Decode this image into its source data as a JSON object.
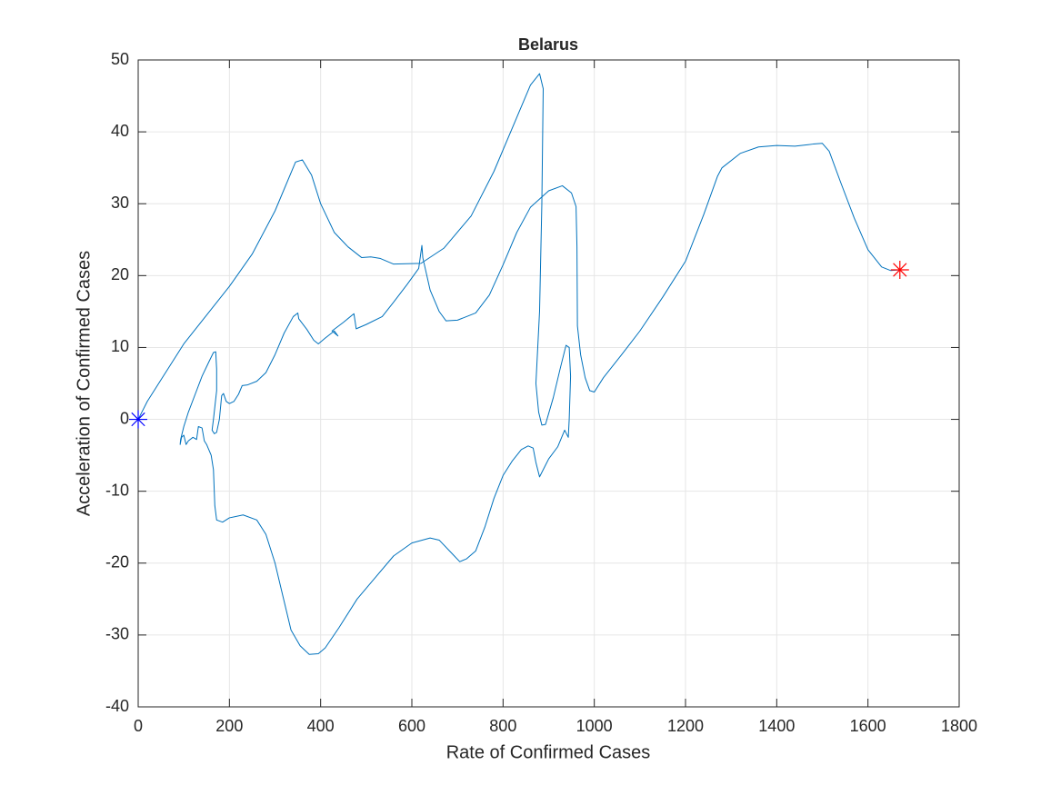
{
  "chart_data": {
    "type": "line",
    "title": "Belarus",
    "xlabel": "Rate of Confirmed Cases",
    "ylabel": "Acceleration of Confirmed Cases",
    "xlim": [
      0,
      1800
    ],
    "xticks": [
      0,
      200,
      400,
      600,
      800,
      1000,
      1200,
      1400,
      1600,
      1800
    ],
    "ylim": [
      -40,
      50
    ],
    "yticks": [
      -40,
      -30,
      -20,
      -10,
      0,
      10,
      20,
      30,
      40,
      50
    ],
    "grid": true,
    "series": [
      {
        "color": "#0072bd",
        "x": [
          0,
          20,
          50,
          75,
          100,
          150,
          200,
          250,
          300,
          345,
          360,
          380,
          400,
          430,
          460,
          490,
          510,
          530,
          560,
          620,
          670,
          730,
          780,
          830,
          860,
          880,
          888,
          885,
          880,
          872,
          878,
          885,
          893,
          910,
          925,
          938,
          945,
          948,
          945,
          943,
          935,
          920,
          900,
          880,
          872,
          866,
          855,
          840,
          820,
          800,
          780,
          760,
          740,
          720,
          705,
          690,
          660,
          640,
          600,
          560,
          520,
          480,
          440,
          410,
          395,
          375,
          355,
          335,
          315,
          300,
          280,
          260,
          230,
          200,
          185,
          172,
          168,
          165,
          160,
          150,
          145,
          140,
          132,
          128,
          120,
          110,
          105,
          100,
          95,
          92,
          93,
          100,
          110,
          125,
          140,
          155,
          165,
          170,
          172,
          172,
          165,
          162,
          167,
          172,
          178,
          183,
          187,
          193,
          200,
          210,
          220,
          228,
          240,
          260,
          280,
          300,
          320,
          340,
          350,
          352,
          370,
          385,
          395,
          410,
          430,
          438,
          425,
          450,
          473,
          478,
          500,
          535,
          560,
          590,
          615,
          622,
          624,
          640,
          660,
          675,
          700,
          740,
          770,
          800,
          830,
          860,
          900,
          930,
          950,
          960,
          962,
          963,
          970,
          980,
          990,
          1000,
          1020,
          1060,
          1100,
          1150,
          1200,
          1240,
          1270,
          1280,
          1320,
          1360,
          1400,
          1440,
          1480,
          1500,
          1515,
          1540,
          1570,
          1600,
          1630,
          1650,
          1670
        ],
        "values": [
          0,
          2.5,
          5.5,
          8,
          10.5,
          14.5,
          18.5,
          23,
          29,
          35.8,
          36.1,
          34,
          30,
          26,
          24,
          22.5,
          22.6,
          22.4,
          21.6,
          21.7,
          23.8,
          28.3,
          34.5,
          42,
          46.5,
          48.1,
          46,
          30,
          15,
          5,
          1,
          -0.8,
          -0.7,
          3,
          7,
          10.3,
          10,
          6,
          0,
          -2.5,
          -1.5,
          -3.8,
          -5.5,
          -8,
          -6,
          -4,
          -3.7,
          -4.2,
          -5.8,
          -7.8,
          -11,
          -15,
          -18.3,
          -19.4,
          -19.8,
          -18.8,
          -16.8,
          -16.5,
          -17.2,
          -19,
          -22,
          -25,
          -29,
          -31.8,
          -32.6,
          -32.7,
          -31.5,
          -29.3,
          -24,
          -20,
          -16,
          -14,
          -13.3,
          -13.7,
          -14.3,
          -14,
          -12,
          -7,
          -5,
          -3.5,
          -3,
          -1.2,
          -1,
          -2.8,
          -2.5,
          -3,
          -3.5,
          -2.2,
          -2.5,
          -3.5,
          -2.8,
          -1,
          1,
          3.5,
          6,
          8,
          9.3,
          9.4,
          7,
          4,
          0,
          -1.5,
          -2,
          -1.8,
          0,
          3.3,
          3.6,
          2.5,
          2.2,
          2.5,
          3.5,
          4.7,
          4.8,
          5.3,
          6.5,
          9,
          12,
          14.3,
          14.8,
          14,
          12.5,
          11,
          10.5,
          11.3,
          12.3,
          11.6,
          12.3,
          13.5,
          14.7,
          12.6,
          13.2,
          14.3,
          16.3,
          18.8,
          21,
          24.2,
          22.5,
          18,
          15,
          13.7,
          13.8,
          14.8,
          17.3,
          21.5,
          26,
          29.5,
          31.8,
          32.5,
          31.5,
          29.6,
          24,
          13,
          9,
          5.8,
          4,
          3.8,
          5.8,
          9,
          12.3,
          17,
          22,
          28.5,
          33.8,
          35,
          37,
          37.9,
          38.1,
          38,
          38.3,
          38.4,
          37.3,
          33,
          28,
          23.6,
          21.2,
          20.7,
          20.8
        ]
      },
      {
        "color": "#0000ff",
        "marker": "*",
        "x": [
          0
        ],
        "values": [
          0
        ]
      },
      {
        "color": "#ff0000",
        "marker": "*",
        "x": [
          1670
        ],
        "values": [
          20.8
        ]
      }
    ]
  }
}
